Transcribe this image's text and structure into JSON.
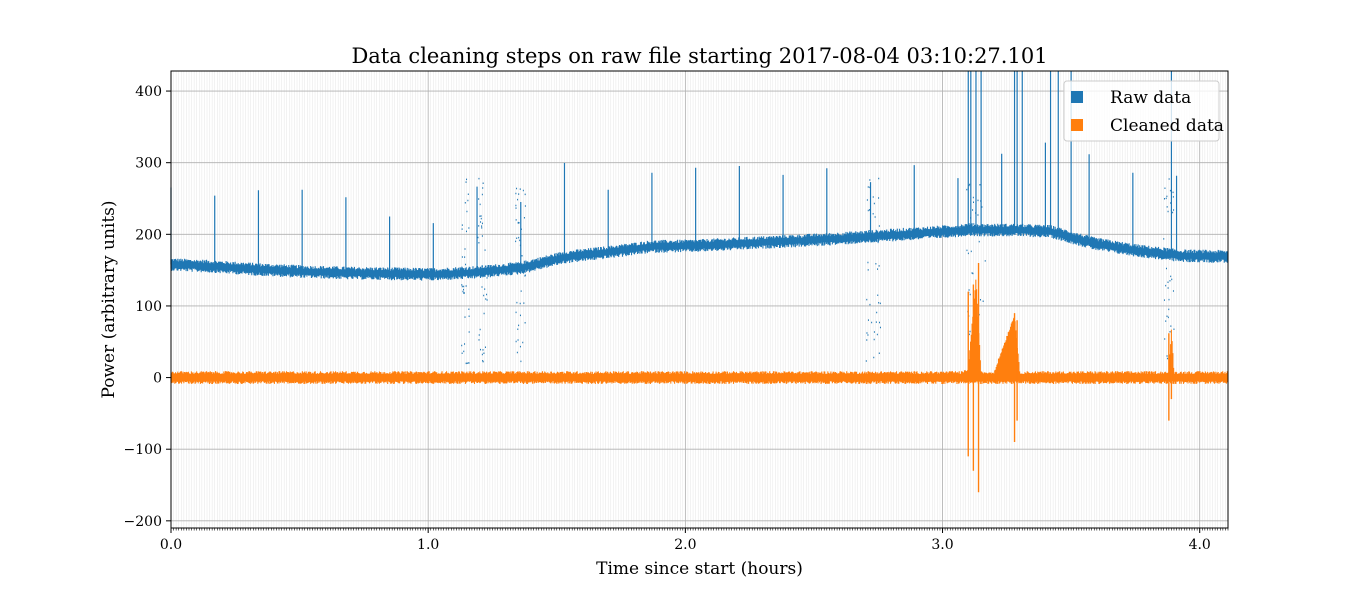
{
  "chart_data": {
    "type": "line",
    "title": "Data cleaning steps on raw file starting 2017-08-04 03:10:27.101",
    "xlabel": "Time since start (hours)",
    "ylabel": "Power (arbitrary units)",
    "xlim": [
      0.0,
      4.11
    ],
    "ylim": [
      -210,
      428
    ],
    "xticks": [
      0.0,
      1.0,
      2.0,
      3.0,
      4.0
    ],
    "xtick_labels": [
      "0.0",
      "1.0",
      "2.0",
      "3.0",
      "4.0"
    ],
    "yticks": [
      -200,
      -100,
      0,
      100,
      200,
      300,
      400
    ],
    "ytick_labels": [
      "−200",
      "−100",
      "0",
      "100",
      "200",
      "300",
      "400"
    ],
    "grid": true,
    "legend_position": "top-right",
    "series": [
      {
        "name": "Raw data",
        "color": "#1f77b4",
        "x": [
          0.0,
          0.17,
          0.34,
          0.51,
          0.68,
          0.85,
          1.02,
          1.19,
          1.36,
          1.53,
          1.7,
          1.87,
          2.04,
          2.21,
          2.38,
          2.55,
          2.72,
          2.89,
          3.06,
          3.1,
          3.14,
          3.28,
          3.42,
          3.59,
          3.76,
          3.93,
          4.11
        ],
        "values": [
          158,
          155,
          151,
          148,
          146,
          145,
          144,
          147,
          153,
          168,
          175,
          183,
          184,
          187,
          190,
          193,
          197,
          201,
          205,
          207,
          206,
          206,
          204,
          187,
          177,
          170,
          169
        ]
      },
      {
        "name": "Cleaned data",
        "color": "#ff7f0e",
        "x": [
          0.0,
          1.0,
          2.0,
          3.0,
          3.08,
          3.1,
          3.13,
          3.15,
          3.2,
          3.28,
          3.3,
          3.5,
          3.88,
          3.89,
          3.9,
          4.11
        ],
        "values": [
          0,
          0,
          0,
          0,
          0,
          5,
          130,
          0,
          0,
          80,
          0,
          0,
          0,
          60,
          0,
          0
        ]
      }
    ]
  }
}
